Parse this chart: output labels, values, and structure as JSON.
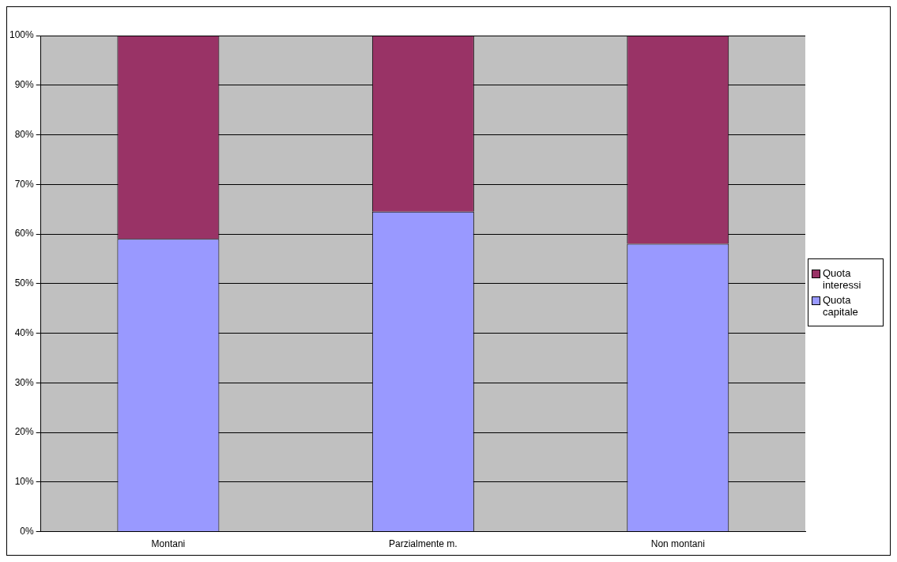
{
  "chart_data": {
    "type": "bar",
    "stacked": true,
    "categories": [
      "Montani",
      "Parzialmente m.",
      "Non montani"
    ],
    "series": [
      {
        "name": "Quota capitale",
        "color": "#9999ff",
        "values": [
          59,
          64.5,
          58
        ]
      },
      {
        "name": "Quota interessi",
        "color": "#993366",
        "values": [
          41,
          35.5,
          42
        ]
      }
    ],
    "ylim": [
      0,
      100
    ],
    "yticks": [
      {
        "value": 0,
        "label": "0%"
      },
      {
        "value": 10,
        "label": "10%"
      },
      {
        "value": 20,
        "label": "20%"
      },
      {
        "value": 30,
        "label": "30%"
      },
      {
        "value": 40,
        "label": "40%"
      },
      {
        "value": 50,
        "label": "50%"
      },
      {
        "value": 60,
        "label": "60%"
      },
      {
        "value": 70,
        "label": "70%"
      },
      {
        "value": 80,
        "label": "80%"
      },
      {
        "value": 90,
        "label": "90%"
      },
      {
        "value": 100,
        "label": "100%"
      }
    ],
    "grid": "y",
    "legend": "right"
  }
}
